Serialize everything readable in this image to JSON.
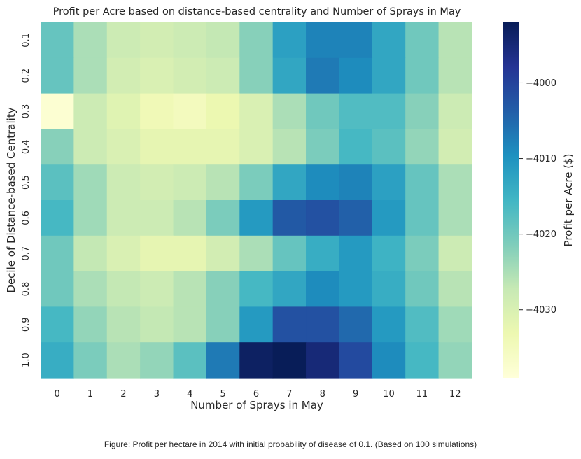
{
  "chart_data": {
    "type": "heatmap",
    "title": "Profit per Acre based on distance-based centrality and Number of Sprays in May",
    "xlabel": "Number of Sprays in May",
    "ylabel": "Decile of Distance-based Centrality",
    "colorbar_label": "Profit per Acre ($)",
    "colormap": "YlGnBu",
    "x_categories": [
      "0",
      "1",
      "2",
      "3",
      "4",
      "5",
      "6",
      "7",
      "8",
      "9",
      "10",
      "11",
      "12"
    ],
    "y_categories": [
      "0.1",
      "0.2",
      "0.3",
      "0.4",
      "0.5",
      "0.6",
      "0.7",
      "0.8",
      "0.9",
      "1.0"
    ],
    "values": [
      [
        -4019,
        -4025,
        -4028,
        -4029,
        -4028,
        -4027,
        -4022,
        -4012,
        -4008,
        -4008,
        -4013,
        -4020,
        -4026
      ],
      [
        -4019,
        -4025,
        -4029,
        -4030,
        -4029,
        -4028,
        -4022,
        -4013,
        -4007,
        -4009,
        -4013,
        -4020,
        -4026
      ],
      [
        -4038,
        -4028,
        -4031,
        -4034,
        -4035,
        -4033,
        -4030,
        -4025,
        -4020,
        -4017,
        -4017,
        -4022,
        -4028
      ],
      [
        -4022,
        -4028,
        -4030,
        -4032,
        -4032,
        -4032,
        -4030,
        -4026,
        -4021,
        -4016,
        -4018,
        -4023,
        -4029
      ],
      [
        -4018,
        -4024,
        -4028,
        -4029,
        -4028,
        -4026,
        -4021,
        -4013,
        -4009,
        -4008,
        -4012,
        -4019,
        -4025
      ],
      [
        -4016,
        -4024,
        -4028,
        -4028,
        -4026,
        -4021,
        -4011,
        -4003,
        -4002,
        -4004,
        -4011,
        -4019,
        -4025
      ],
      [
        -4020,
        -4027,
        -4030,
        -4032,
        -4032,
        -4029,
        -4025,
        -4019,
        -4014,
        -4011,
        -4015,
        -4021,
        -4028
      ],
      [
        -4020,
        -4025,
        -4027,
        -4028,
        -4026,
        -4022,
        -4016,
        -4013,
        -4009,
        -4011,
        -4014,
        -4020,
        -4026
      ],
      [
        -4016,
        -4023,
        -4026,
        -4027,
        -4026,
        -4022,
        -4011,
        -4002,
        -4002,
        -4005,
        -4011,
        -4017,
        -4024
      ],
      [
        -4014,
        -4021,
        -4025,
        -4023,
        -4018,
        -4007,
        -3993,
        -3992,
        -3995,
        -4001,
        -4009,
        -4016,
        -4023
      ]
    ],
    "colorbar_range": [
      -4039,
      -3992
    ],
    "colorbar_ticks": [
      -4000,
      -4010,
      -4020,
      -4030
    ],
    "colorbar_tick_labels": [
      "−4000",
      "−4010",
      "−4020",
      "−4030"
    ],
    "caption": "Figure: Profit per hectare in 2014 with initial probability of disease of 0.1. (Based on 100 simulations)"
  }
}
